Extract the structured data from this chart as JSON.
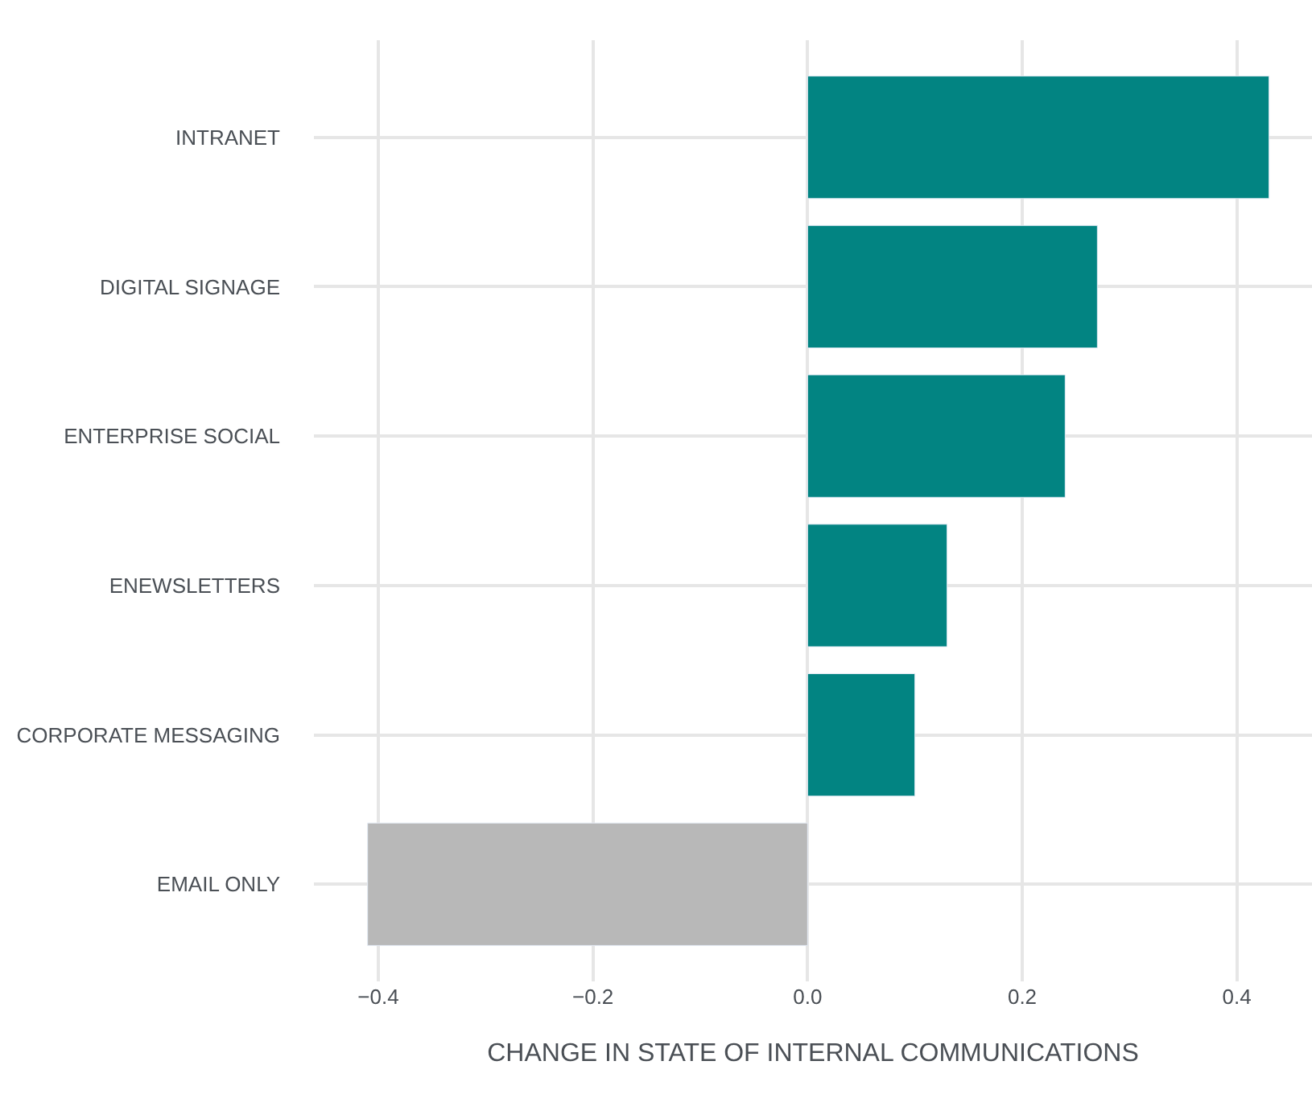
{
  "chart_data": {
    "type": "bar",
    "orientation": "horizontal",
    "xlabel": "CHANGE IN STATE OF INTERNAL COMMUNICATIONS",
    "categories": [
      "INTRANET",
      "DIGITAL SIGNAGE",
      "ENTERPRISE SOCIAL",
      "ENEWSLETTERS",
      "CORPORATE MESSAGING",
      "EMAIL ONLY"
    ],
    "values": [
      0.43,
      0.27,
      0.24,
      0.13,
      0.1,
      -0.41
    ],
    "colors": [
      "#028482",
      "#028482",
      "#028482",
      "#028482",
      "#028482",
      "#b8b8b8"
    ],
    "xlim": [
      -0.46,
      0.47
    ],
    "xticks": [
      {
        "value": -0.4,
        "label": "−0.4"
      },
      {
        "value": -0.2,
        "label": "−0.2"
      },
      {
        "value": 0,
        "label": "0.0"
      },
      0.2,
      0.4
    ],
    "grid": true
  }
}
